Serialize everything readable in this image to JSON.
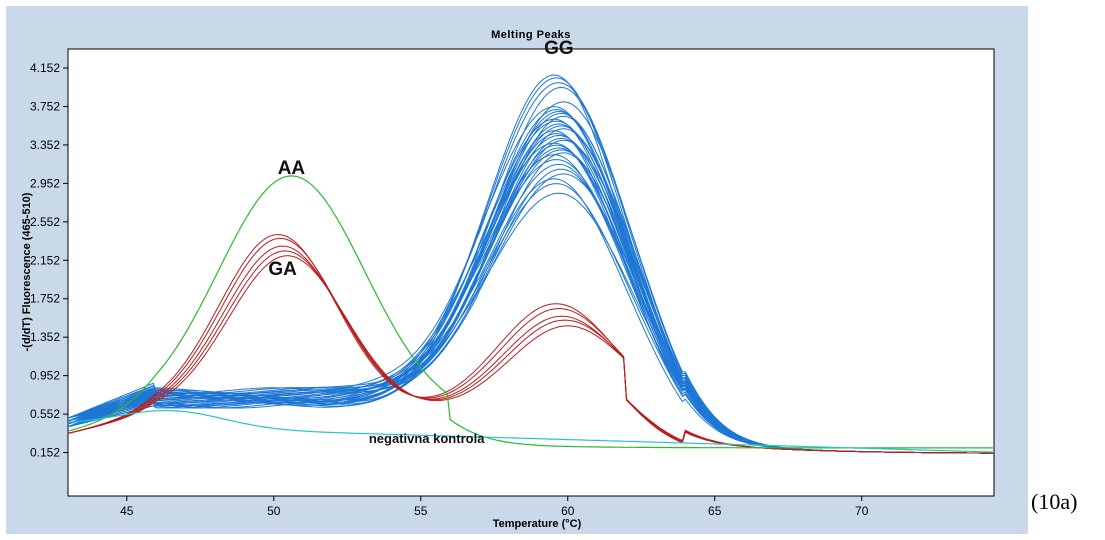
{
  "figure_label": "(10a)",
  "chart_data": {
    "type": "line",
    "title": "Melting Peaks",
    "xlabel": "Temperature (°C)",
    "ylabel": "-(d/dT) Fluorescence (465-510)",
    "xlim": [
      43,
      74.5
    ],
    "ylim": [
      -0.3,
      4.35
    ],
    "xticks": [
      45,
      50,
      55,
      60,
      65,
      70
    ],
    "yticks": [
      0.152,
      0.552,
      0.952,
      1.352,
      1.752,
      2.152,
      2.552,
      2.952,
      3.352,
      3.752,
      4.152
    ],
    "ytick_labels": [
      "0.152",
      "0.552",
      "0.952",
      "1.352",
      "1.752",
      "2.152",
      "2.552",
      "2.952",
      "3.352",
      "3.752",
      "4.152"
    ],
    "grid": false,
    "annotations": [
      {
        "text": "GG",
        "x": 59.7,
        "y": 4.3
      },
      {
        "text": "AA",
        "x": 50.6,
        "y": 3.05
      },
      {
        "text": "GA",
        "x": 50.3,
        "y": 2.0
      },
      {
        "text": "negativna kontrola",
        "x": 55.2,
        "y": 0.25
      }
    ],
    "series": [
      {
        "group": "GG",
        "color": "#1f77d4",
        "peak_x": 59.7,
        "peak_heights": [
          4.08,
          4.05,
          4.0,
          3.95,
          3.8,
          3.75,
          3.72,
          3.7,
          3.68,
          3.65,
          3.62,
          3.6,
          3.57,
          3.55,
          3.52,
          3.5,
          3.47,
          3.45,
          3.42,
          3.4,
          3.37,
          3.35,
          3.32,
          3.3,
          3.27,
          3.25,
          3.2,
          3.15,
          3.1,
          3.05,
          3.0,
          2.95,
          2.85
        ],
        "baseline": 0.72
      },
      {
        "group": "GA",
        "color": "#b81e1e",
        "peak1_x": 50.3,
        "peak1_heights": [
          2.42,
          2.38,
          2.3,
          2.25,
          2.2
        ],
        "peak2_x": 59.8,
        "peak2_heights": [
          1.75,
          1.7,
          1.62,
          1.58,
          1.52
        ]
      },
      {
        "group": "AA",
        "color": "#2eb82e",
        "peak_x": 50.6,
        "peak_height": 2.98
      },
      {
        "group": "negativna kontrola",
        "color": "#27c4c4",
        "peak_x": 46.5,
        "peak_height": 0.6
      }
    ]
  }
}
